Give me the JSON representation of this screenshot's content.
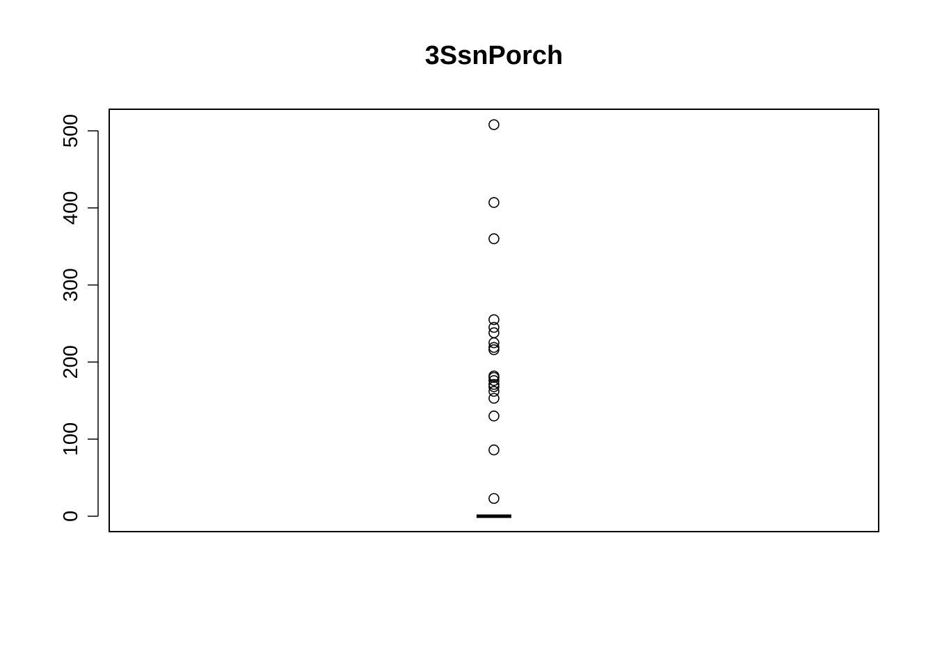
{
  "chart_data": {
    "type": "box",
    "title": "3SsnPorch",
    "xlabel": "",
    "ylabel": "",
    "ylim": [
      -20,
      528
    ],
    "yticks": [
      0,
      100,
      200,
      300,
      400,
      500
    ],
    "ytick_labels": [
      "0",
      "100",
      "200",
      "300",
      "400",
      "500"
    ],
    "box": {
      "min": 0,
      "q1": 0,
      "median": 0,
      "q3": 0,
      "max": 0
    },
    "outliers": [
      508,
      407,
      360,
      255,
      245,
      238,
      225,
      219,
      216,
      182,
      180,
      176,
      171,
      168,
      162,
      153,
      130,
      86,
      23
    ],
    "grid": false,
    "legend": "none"
  },
  "colors": {
    "stroke": "#000000",
    "background": "#ffffff"
  }
}
